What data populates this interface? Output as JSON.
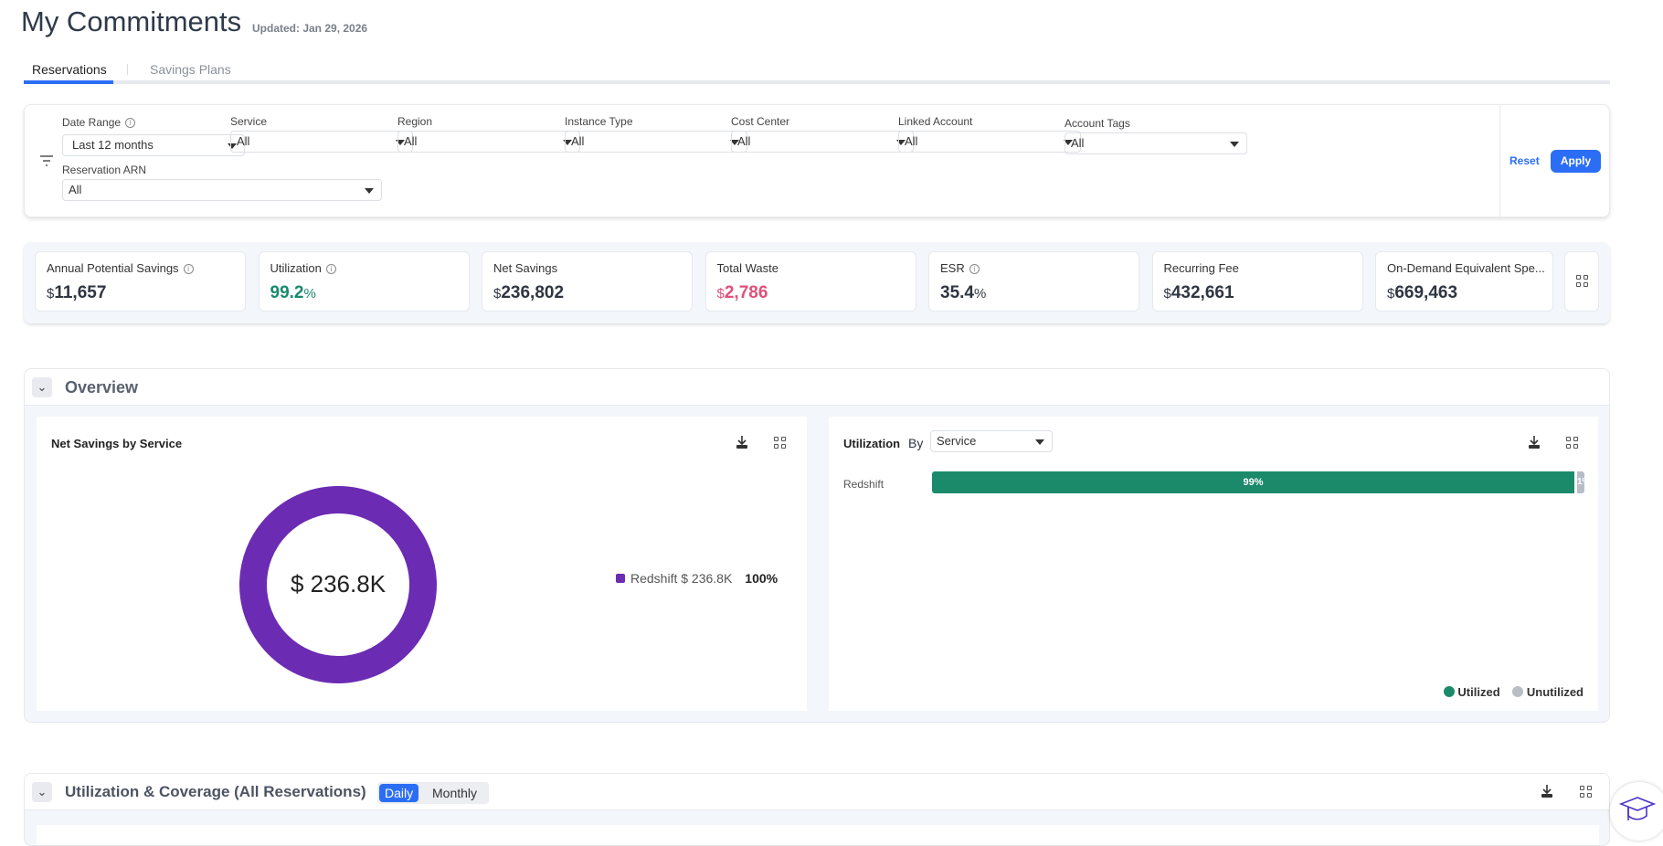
{
  "header": {
    "title": "My Commitments",
    "updated": "Updated: Jan 29, 2026"
  },
  "tabs": [
    {
      "label": "Reservations",
      "active": true
    },
    {
      "label": "Savings Plans",
      "active": false
    }
  ],
  "filters": {
    "items": [
      {
        "label": "Date Range",
        "value": "Last 12 months",
        "info": true
      },
      {
        "label": "Service",
        "value": "All"
      },
      {
        "label": "Region",
        "value": "All"
      },
      {
        "label": "Instance Type",
        "value": "All"
      },
      {
        "label": "Cost Center",
        "value": "All"
      },
      {
        "label": "Linked Account",
        "value": "All"
      },
      {
        "label": "Account Tags",
        "value": "All"
      },
      {
        "label": "Reservation ARN",
        "value": "All"
      }
    ],
    "reset": "Reset",
    "apply": "Apply"
  },
  "kpis": [
    {
      "label": "Annual Potential Savings",
      "currency": "$",
      "value": "11,657",
      "info": true
    },
    {
      "label": "Utilization",
      "currency": "",
      "value": "99.2",
      "suffix": "%",
      "info": true,
      "color": "#1a8a6e"
    },
    {
      "label": "Net Savings",
      "currency": "$",
      "value": "236,802"
    },
    {
      "label": "Total Waste",
      "currency": "$",
      "value": "2,786",
      "color": "#e0507a"
    },
    {
      "label": "ESR",
      "currency": "",
      "value": "35.4",
      "suffix": "%",
      "info": true
    },
    {
      "label": "Recurring Fee",
      "currency": "$",
      "value": "432,661"
    },
    {
      "label": "On-Demand Equivalent Spe...",
      "currency": "$",
      "value": "669,463"
    }
  ],
  "overview": {
    "title": "Overview",
    "net_savings": {
      "title": "Net Savings by Service",
      "center": "$ 236.8K",
      "legend": [
        {
          "label": "Redshift $ 236.8K",
          "pct": "100%",
          "color": "#6b2bb3"
        }
      ]
    },
    "utilization": {
      "title": "Utilization",
      "by": "By",
      "select": "Service",
      "rows": [
        {
          "label": "Redshift",
          "utilized": 99,
          "unutilized": 1,
          "utilized_label": "99%",
          "unutilized_label": "1%"
        }
      ],
      "legend": [
        {
          "label": "Utilized",
          "color": "#1b8a6b"
        },
        {
          "label": "Unutilized",
          "color": "#b9bdc5"
        }
      ]
    }
  },
  "coverage": {
    "title": "Utilization & Coverage (All Reservations)",
    "toggle": [
      "Daily",
      "Monthly"
    ],
    "active": "Daily"
  },
  "chart_data": [
    {
      "type": "pie",
      "title": "Net Savings by Service",
      "categories": [
        "Redshift"
      ],
      "values": [
        236.8
      ],
      "unit": "$K",
      "center_label": "$ 236.8K"
    },
    {
      "type": "bar",
      "title": "Utilization By Service",
      "categories": [
        "Redshift"
      ],
      "series": [
        {
          "name": "Utilized",
          "values": [
            99
          ]
        },
        {
          "name": "Unutilized",
          "values": [
            1
          ]
        }
      ],
      "stacked": true,
      "unit": "%"
    }
  ]
}
